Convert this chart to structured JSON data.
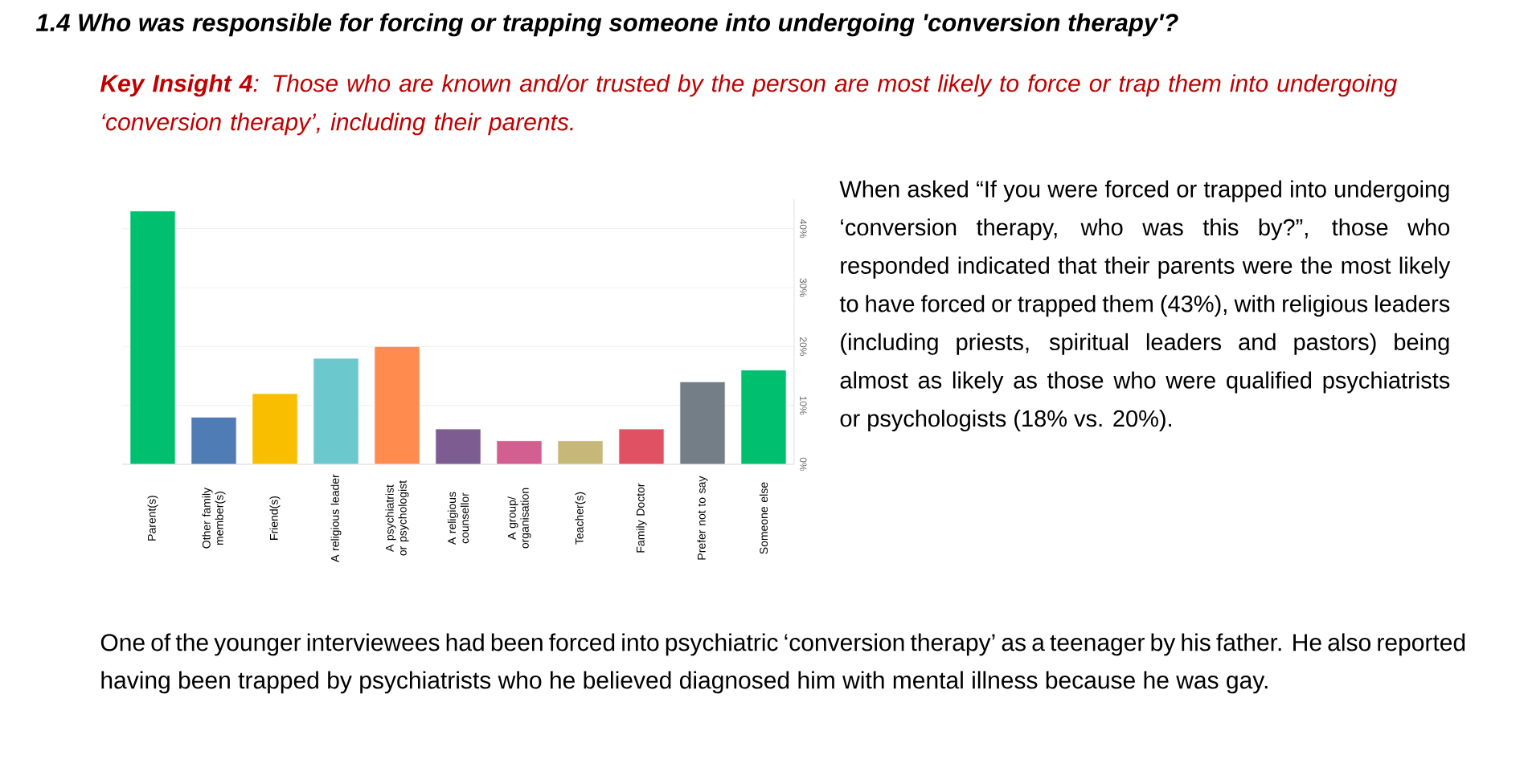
{
  "chart_data": {
    "type": "bar",
    "title": "1.4 Who was responsible for forcing or trapping someone into undergoing 'conversion therapy'?",
    "subtitle": "**Key Insight 4**: Those who are known and/or trusted by the person are most likely to force or trap them into undergoing ‘conversion therapy’, including their parents.",
    "categories": [
      "Parent(s)",
      "Other family member(s)",
      "Friend(s)",
      "A religious leader",
      "A psychiatrist or psychologist",
      "A religious counsellor",
      "A group/ organisation",
      "Teacher(s)",
      "Family Doctor",
      "Prefer not to say",
      "Someone else"
    ],
    "values": [
      43,
      8,
      12,
      18,
      20,
      6,
      4,
      4,
      6,
      14,
      16
    ],
    "colors": [
      "#00bf6f",
      "#507cb6",
      "#f9be00",
      "#6bc8cd",
      "#ff8b4f",
      "#7d5c91",
      "#d25f90",
      "#c7b879",
      "#e05263",
      "#747e87",
      "#00bf6f"
    ],
    "ylim": [
      0,
      45
    ],
    "yticks": [
      {
        "value": 0,
        "label": "0%"
      },
      {
        "value": 10,
        "label": "10%"
      },
      {
        "value": 20,
        "label": "20%"
      },
      {
        "value": 30,
        "label": "30%"
      },
      {
        "value": 40,
        "label": "40%"
      }
    ],
    "grid": "y",
    "annotations": [
      "When asked “If you were forced or trapped into undergoing ‘conversion therapy, who was this by?”, those who responded indicated that their parents were the most likely to have forced or trapped them (43%), with religious leaders (including priests, spiritual leaders and pastors) being almost as likely as those who were qualified psychiatrists or psychologists (18% vs. 20%).",
      "One of the younger interviewees had been forced into psychiatric ‘conversion therapy’ as a teenager by his father. He also reported having been trapped by psychiatrists who he believed diagnosed him with mental illness because he was gay."
    ]
  }
}
